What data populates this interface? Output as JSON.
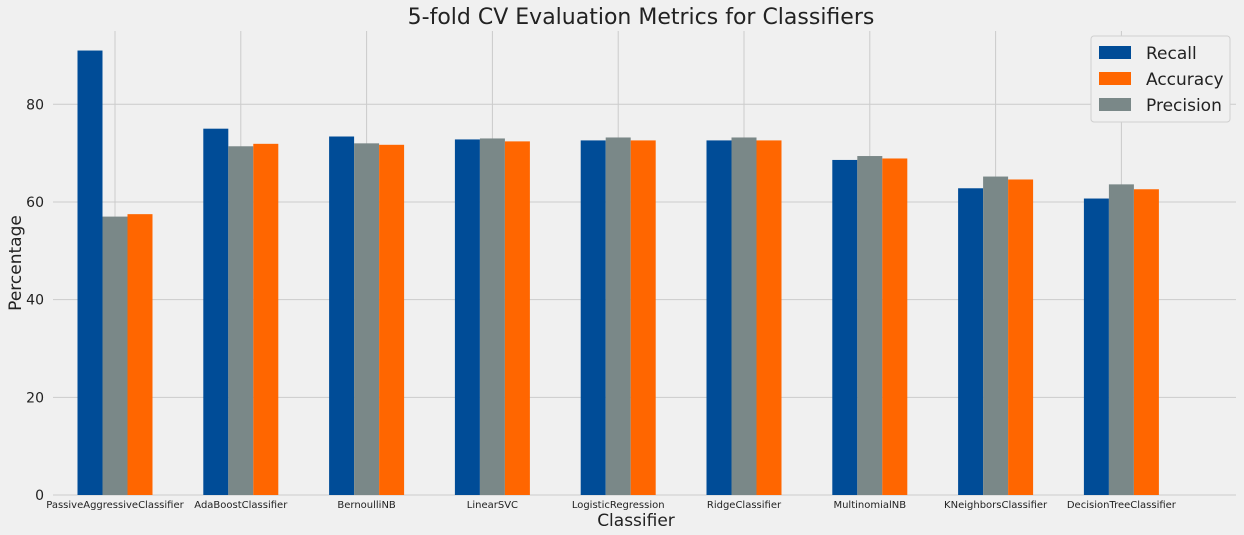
{
  "chart_data": {
    "type": "bar",
    "title": "5-fold CV Evaluation Metrics for Classifiers",
    "xlabel": "Classifier",
    "ylabel": "Percentage",
    "categories": [
      "PassiveAggressiveClassifier",
      "AdaBoostClassifier",
      "BernoulliNB",
      "LinearSVC",
      "LogisticRegression",
      "RidgeClassifier",
      "MultinomialNB",
      "KNeighborsClassifier",
      "DecisionTreeClassifier"
    ],
    "series": [
      {
        "name": "Recall",
        "color": "#004c97",
        "values": [
          91.0,
          75.0,
          73.4,
          72.8,
          72.6,
          72.6,
          68.6,
          62.8,
          60.7
        ]
      },
      {
        "name": "Precision",
        "color": "#7a8888",
        "values": [
          57.0,
          71.4,
          72.0,
          73.0,
          73.2,
          73.2,
          69.4,
          65.2,
          63.6
        ]
      },
      {
        "name": "Accuracy",
        "color": "#ff6600",
        "values": [
          57.5,
          71.9,
          71.7,
          72.4,
          72.6,
          72.6,
          68.9,
          64.6,
          62.6
        ]
      }
    ],
    "legend_order": [
      "Recall",
      "Accuracy",
      "Precision"
    ],
    "legend_position": "top-right",
    "yticks": [
      0,
      20,
      40,
      60,
      80
    ],
    "ylim": [
      0,
      95
    ],
    "grid": true
  }
}
